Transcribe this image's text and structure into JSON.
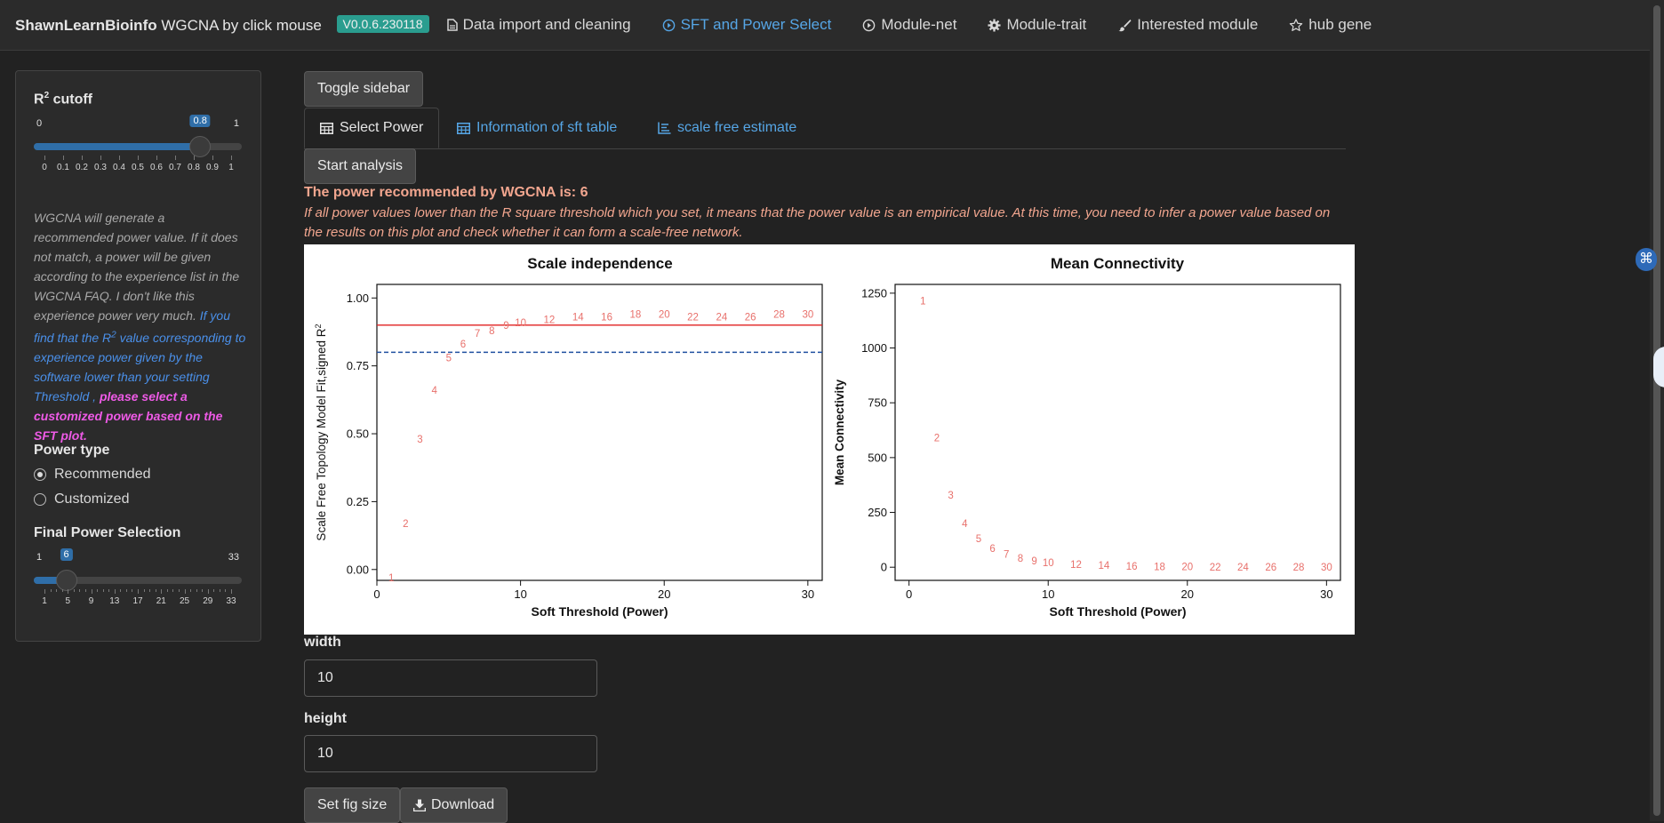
{
  "navbar": {
    "brand_bold": "ShawnLearnBioinfo",
    "brand_rest": "WGCNA by click mouse",
    "version": "V0.0.6.230118",
    "items": [
      {
        "label": "Data import and cleaning",
        "icon": "file-icon"
      },
      {
        "label": "SFT and Power Select",
        "icon": "play-circle-icon",
        "active": true
      },
      {
        "label": "Module-net",
        "icon": "play-circle-icon"
      },
      {
        "label": "Module-trait",
        "icon": "gear-icon"
      },
      {
        "label": "Interested module",
        "icon": "brush-icon"
      },
      {
        "label": "hub gene",
        "icon": "star-icon"
      }
    ]
  },
  "sidebar": {
    "r2_label": "R",
    "r2_sup": "2",
    "r2_label_rest": " cutoff",
    "r2_slider": {
      "min": "0",
      "max": "1",
      "value": "0.8",
      "fraction": 0.8,
      "ticks": [
        "0",
        "0.1",
        "0.2",
        "0.3",
        "0.4",
        "0.5",
        "0.6",
        "0.7",
        "0.8",
        "0.9",
        "1"
      ]
    },
    "help_part1": "WGCNA will generate a recommended power value. If it does not match, a power will be given according to the experience list in the WGCNA FAQ. I don't like this experience power very much.",
    "help_part2_a": "If you find that the R",
    "help_part2_sup": "2",
    "help_part2_b": "value corresponding to experience power given by the software lower than your setting Threshold ,",
    "help_part3": "please select a customized power based on the SFT plot.",
    "power_type_label": "Power type",
    "power_options": [
      {
        "label": "Recommended",
        "selected": true
      },
      {
        "label": "Customized",
        "selected": false
      }
    ],
    "final_power_label": "Final Power Selection",
    "power_slider": {
      "min": "1",
      "max": "33",
      "value": "6",
      "fraction": 0.15625,
      "ticks": [
        "1",
        "5",
        "9",
        "13",
        "17",
        "21",
        "25",
        "29",
        "33"
      ]
    }
  },
  "main": {
    "toggle_sidebar": "Toggle sidebar",
    "tabs": [
      {
        "label": "Select Power",
        "icon": "table-icon",
        "active": true
      },
      {
        "label": "Information of sft table",
        "icon": "table-icon"
      },
      {
        "label": "scale free estimate",
        "icon": "bar-chart-icon"
      }
    ],
    "start_analysis": "Start analysis",
    "recommend_text": "The power recommended by WGCNA is: 6",
    "note_text": "If all power values lower than the R square threshold which you set, it means that the power value is an empirical value. At this time, you need to infer a power value based on the results on this plot and check whether it can form a scale-free network.",
    "width_label": "width",
    "width_value": "10",
    "height_label": "height",
    "height_value": "10",
    "set_fig_size": "Set fig size",
    "download": "Download"
  },
  "chart_data": [
    {
      "type": "scatter",
      "title": "Scale independence",
      "xlabel": "Soft Threshold (Power)",
      "ylabel": "Scale Free Topology Model Fit,signed R",
      "ylabel_sup": "2",
      "xlim": [
        0,
        31
      ],
      "ylim": [
        -0.04,
        1.05
      ],
      "xticks": [
        0,
        10,
        20,
        30
      ],
      "yticks": [
        0.0,
        0.25,
        0.5,
        0.75,
        1.0
      ],
      "ytick_labels": [
        "0.00",
        "0.25",
        "0.50",
        "0.75",
        "1.00"
      ],
      "point_color": "#e8706b",
      "x": [
        1,
        2,
        3,
        4,
        5,
        6,
        7,
        8,
        9,
        10,
        12,
        14,
        16,
        18,
        20,
        22,
        24,
        26,
        28,
        30
      ],
      "y": [
        -0.03,
        0.17,
        0.48,
        0.66,
        0.78,
        0.83,
        0.87,
        0.88,
        0.9,
        0.91,
        0.92,
        0.93,
        0.93,
        0.94,
        0.94,
        0.93,
        0.93,
        0.93,
        0.94,
        0.94
      ],
      "hlines": [
        {
          "y": 0.9,
          "color": "#e02020",
          "style": "solid"
        },
        {
          "y": 0.8,
          "color": "#2050a0",
          "style": "dashed"
        }
      ]
    },
    {
      "type": "scatter",
      "title": "Mean Connectivity",
      "xlabel": "Soft Threshold (Power)",
      "ylabel": "Mean Connectivity",
      "xlim": [
        -1,
        31
      ],
      "ylim": [
        -60,
        1290
      ],
      "xticks": [
        0,
        10,
        20,
        30
      ],
      "yticks": [
        0,
        250,
        500,
        750,
        1000,
        1250
      ],
      "ytick_labels": [
        "0",
        "250",
        "500",
        "750",
        "1000",
        "1250"
      ],
      "point_color": "#e8706b",
      "x": [
        1,
        2,
        3,
        4,
        5,
        6,
        7,
        8,
        9,
        10,
        12,
        14,
        16,
        18,
        20,
        22,
        24,
        26,
        28,
        30
      ],
      "y": [
        1215,
        590,
        330,
        200,
        130,
        85,
        60,
        42,
        30,
        22,
        12,
        8,
        5,
        3,
        2,
        1,
        1,
        0,
        0,
        0
      ]
    }
  ]
}
